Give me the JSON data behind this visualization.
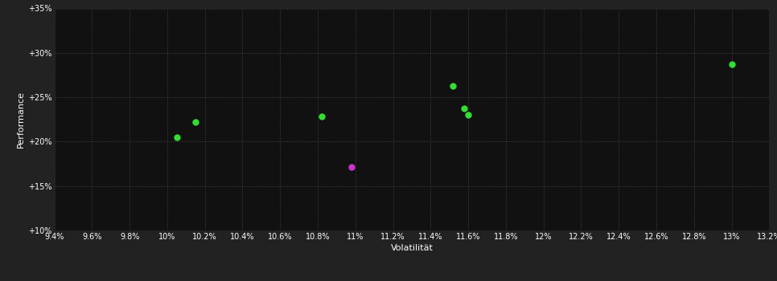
{
  "background_color": "#222222",
  "plot_bg_color": "#111111",
  "grid_color": "#444444",
  "text_color": "#ffffff",
  "xlabel": "Volatilität",
  "ylabel": "Performance",
  "xlim": [
    0.094,
    0.132
  ],
  "ylim": [
    0.1,
    0.35
  ],
  "xticks": [
    0.094,
    0.096,
    0.098,
    0.1,
    0.102,
    0.104,
    0.106,
    0.108,
    0.11,
    0.112,
    0.114,
    0.116,
    0.118,
    0.12,
    0.122,
    0.124,
    0.126,
    0.128,
    0.13,
    0.132
  ],
  "yticks": [
    0.1,
    0.15,
    0.2,
    0.25,
    0.3,
    0.35
  ],
  "green_points": [
    [
      0.1015,
      0.222
    ],
    [
      0.1005,
      0.205
    ],
    [
      0.1082,
      0.228
    ],
    [
      0.1152,
      0.263
    ],
    [
      0.1158,
      0.237
    ],
    [
      0.116,
      0.23
    ],
    [
      0.13,
      0.287
    ]
  ],
  "magenta_points": [
    [
      0.1098,
      0.171
    ]
  ],
  "green_color": "#33dd33",
  "magenta_color": "#cc33cc",
  "marker_size": 6,
  "font_size_ticks": 7,
  "font_size_label": 8
}
